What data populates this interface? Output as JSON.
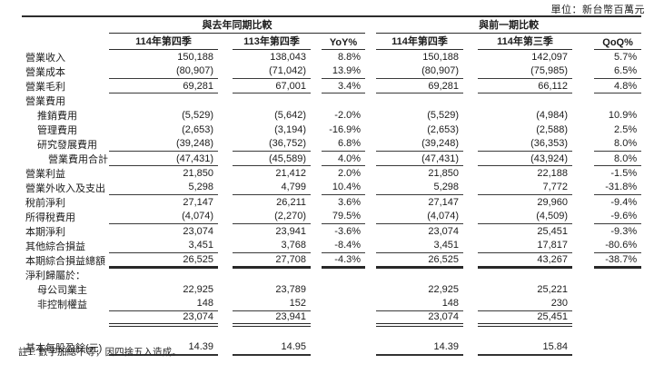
{
  "unit_label": "單位：新台幣百萬元",
  "table": {
    "groups": [
      {
        "label": "與去年同期比較"
      },
      {
        "label": "與前一期比較"
      }
    ],
    "columns": [
      "114年第四季",
      "113年第四季",
      "YoY%",
      "114年第四季",
      "114年第三季",
      "QoQ%"
    ],
    "rows": [
      {
        "label": "營業收入",
        "indent": 0,
        "rule": "none",
        "values": [
          "150,188",
          "138,043",
          "8.8%",
          "150,188",
          "142,097",
          "5.7%"
        ]
      },
      {
        "label": "營業成本",
        "indent": 0,
        "rule": "thin",
        "values": [
          "(80,907)",
          "(71,042)",
          "13.9%",
          "(80,907)",
          "(75,985)",
          "6.5%"
        ]
      },
      {
        "label": "營業毛利",
        "indent": 0,
        "rule": "thin",
        "values": [
          "69,281",
          "67,001",
          "3.4%",
          "69,281",
          "66,112",
          "4.8%"
        ]
      },
      {
        "label": "營業費用",
        "indent": 0,
        "rule": "none",
        "values": [
          "",
          "",
          "",
          "",
          "",
          ""
        ]
      },
      {
        "label": "推銷費用",
        "indent": 1,
        "rule": "none",
        "values": [
          "(5,529)",
          "(5,642)",
          "-2.0%",
          "(5,529)",
          "(4,984)",
          "10.9%"
        ]
      },
      {
        "label": "管理費用",
        "indent": 1,
        "rule": "none",
        "values": [
          "(2,653)",
          "(3,194)",
          "-16.9%",
          "(2,653)",
          "(2,588)",
          "2.5%"
        ]
      },
      {
        "label": "研究發展費用",
        "indent": 1,
        "rule": "thin",
        "values": [
          "(39,248)",
          "(36,752)",
          "6.8%",
          "(39,248)",
          "(36,353)",
          "8.0%"
        ]
      },
      {
        "label": "營業費用合計",
        "indent": 2,
        "rule": "thin",
        "values": [
          "(47,431)",
          "(45,589)",
          "4.0%",
          "(47,431)",
          "(43,924)",
          "8.0%"
        ]
      },
      {
        "label": "營業利益",
        "indent": 0,
        "rule": "none",
        "values": [
          "21,850",
          "21,412",
          "2.0%",
          "21,850",
          "22,188",
          "-1.5%"
        ]
      },
      {
        "label": "營業外收入及支出",
        "indent": 0,
        "rule": "thin",
        "values": [
          "5,298",
          "4,799",
          "10.4%",
          "5,298",
          "7,772",
          "-31.8%"
        ]
      },
      {
        "label": "稅前淨利",
        "indent": 0,
        "rule": "none",
        "values": [
          "27,147",
          "26,211",
          "3.6%",
          "27,147",
          "29,960",
          "-9.4%"
        ]
      },
      {
        "label": "所得稅費用",
        "indent": 0,
        "rule": "thin",
        "values": [
          "(4,074)",
          "(2,270)",
          "79.5%",
          "(4,074)",
          "(4,509)",
          "-9.6%"
        ]
      },
      {
        "label": "本期淨利",
        "indent": 0,
        "rule": "none",
        "values": [
          "23,074",
          "23,941",
          "-3.6%",
          "23,074",
          "25,451",
          "-9.3%"
        ]
      },
      {
        "label": "其他綜合損益",
        "indent": 0,
        "rule": "thin",
        "values": [
          "3,451",
          "3,768",
          "-8.4%",
          "3,451",
          "17,817",
          "-80.6%"
        ]
      },
      {
        "label": "本期綜合損益總額",
        "indent": 0,
        "rule": "thick",
        "values": [
          "26,525",
          "27,708",
          "-4.3%",
          "26,525",
          "43,267",
          "-38.7%"
        ]
      },
      {
        "label": "淨利歸屬於：",
        "indent": 0,
        "rule": "none",
        "values": [
          "",
          "",
          "",
          "",
          "",
          ""
        ]
      },
      {
        "label": "母公司業主",
        "indent": 1,
        "rule": "none",
        "values": [
          "22,925",
          "23,789",
          "",
          "22,925",
          "25,221",
          ""
        ]
      },
      {
        "label": "非控制權益",
        "indent": 1,
        "rule": "thin-num",
        "values": [
          "148",
          "152",
          "",
          "148",
          "230",
          ""
        ]
      },
      {
        "label": "",
        "indent": 0,
        "rule": "double-num",
        "values": [
          "23,074",
          "23,941",
          "",
          "23,074",
          "25,451",
          ""
        ]
      },
      {
        "label": "",
        "indent": 0,
        "rule": "none",
        "spacer": true,
        "values": [
          "",
          "",
          "",
          "",
          "",
          ""
        ]
      },
      {
        "label": "基本每股盈餘(元)",
        "indent": 0,
        "rule": "thick-num",
        "values": [
          "14.39",
          "14.95",
          "",
          "14.39",
          "15.84",
          ""
        ]
      }
    ],
    "footnote": "註1: 數字加總不等，因四捨五入造成。"
  }
}
